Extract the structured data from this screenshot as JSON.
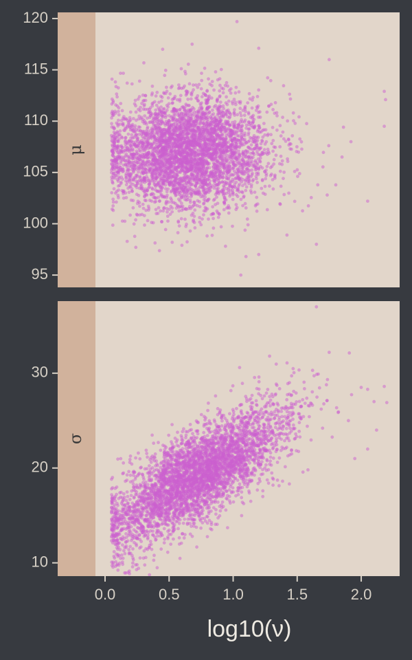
{
  "chart_data": {
    "type": "scatter",
    "xlabel": "log10(ν)",
    "x_ticks": [
      0.0,
      0.5,
      1.0,
      1.5,
      2.0
    ],
    "x_tick_labels": [
      "0.0",
      "0.5",
      "1.0",
      "1.5",
      "2.0"
    ],
    "xlim": [
      -0.37,
      2.3
    ],
    "grid": false,
    "colors": {
      "page_background": "#373a40",
      "panel_background": "#e2d6ca",
      "strip_background": "#d1b29c",
      "points": "#cc5fcf"
    },
    "panels": [
      {
        "strip_label": "μ",
        "ylim": [
          93.8,
          120.6
        ],
        "y_ticks": [
          95,
          100,
          105,
          110,
          115,
          120
        ],
        "y_tick_labels": [
          "95",
          "100",
          "105",
          "110",
          "115",
          "120"
        ],
        "n_points": 4000,
        "cloud": {
          "x_center": 0.65,
          "x_spread": 0.32,
          "y_center": 107.0,
          "y_spread": 2.7,
          "correlation": 0.05
        },
        "points_sample": [
          [
            1.03,
            119.7
          ],
          [
            0.45,
            117.0
          ],
          [
            0.68,
            117.5
          ],
          [
            1.2,
            117.1
          ],
          [
            1.75,
            116.0
          ],
          [
            2.18,
            112.9
          ],
          [
            2.19,
            112.1
          ],
          [
            2.18,
            109.5
          ],
          [
            1.92,
            108.0
          ],
          [
            2.05,
            102.2
          ],
          [
            1.2,
            97.0
          ],
          [
            1.1,
            96.8
          ],
          [
            1.06,
            95.0
          ],
          [
            0.24,
            97.7
          ],
          [
            0.6,
            97.9
          ],
          [
            1.65,
            98.0
          ],
          [
            0.1,
            109.7
          ],
          [
            0.05,
            108.6
          ],
          [
            1.85,
            106.5
          ],
          [
            0.3,
            101.5
          ]
        ]
      },
      {
        "strip_label": "σ",
        "ylim": [
          8.6,
          37.6
        ],
        "y_ticks": [
          10,
          20,
          30
        ],
        "y_tick_labels": [
          "10",
          "20",
          "30"
        ],
        "n_points": 4000,
        "cloud": {
          "x_center": 0.72,
          "x_spread": 0.35,
          "y_center": 19.2,
          "y_spread": 3.6,
          "correlation": 0.75
        },
        "points_sample": [
          [
            1.65,
            37.0
          ],
          [
            1.75,
            32.2
          ],
          [
            1.05,
            30.6
          ],
          [
            1.62,
            30.3
          ],
          [
            2.05,
            28.3
          ],
          [
            2.18,
            28.6
          ],
          [
            2.2,
            26.9
          ],
          [
            2.0,
            28.5
          ],
          [
            2.1,
            27.0
          ],
          [
            1.9,
            25.0
          ],
          [
            2.12,
            24.0
          ],
          [
            2.05,
            22.0
          ],
          [
            1.95,
            21.0
          ],
          [
            0.08,
            17.0
          ],
          [
            0.2,
            11.0
          ],
          [
            0.3,
            10.5
          ],
          [
            0.25,
            9.8
          ],
          [
            0.5,
            13.0
          ],
          [
            0.7,
            15.0
          ],
          [
            1.2,
            24.5
          ]
        ]
      }
    ]
  }
}
